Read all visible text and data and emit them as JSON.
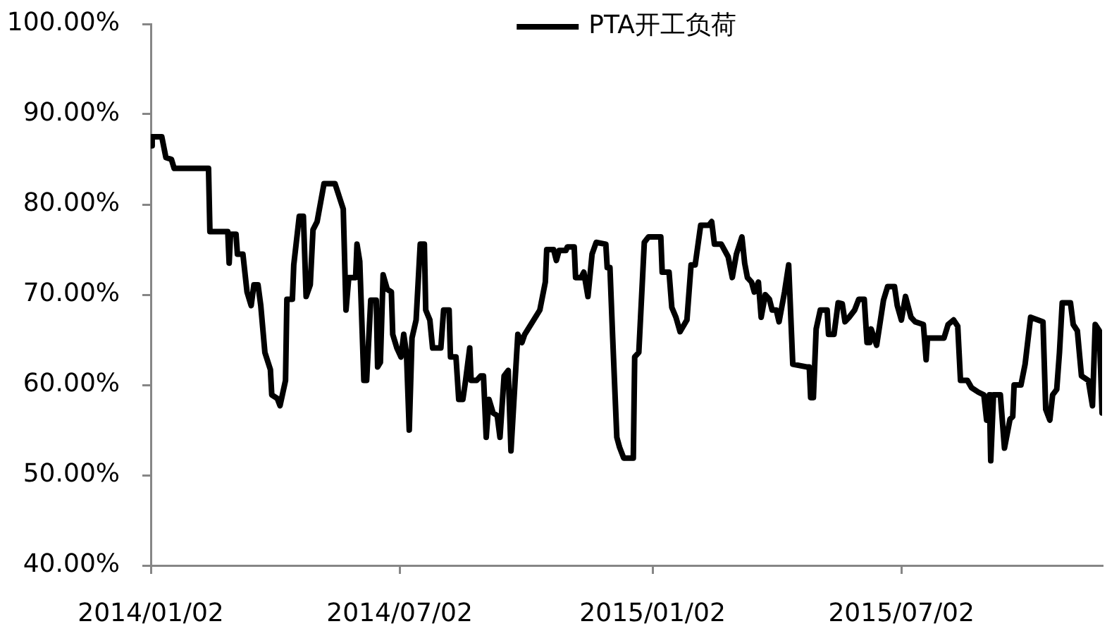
{
  "chart_data": {
    "type": "line",
    "legend": "top",
    "x": [
      "2014-01-02",
      "2014-01-03",
      "2014-01-10",
      "2014-01-13",
      "2014-01-17",
      "2014-01-19",
      "2014-02-13",
      "2014-02-14",
      "2014-02-27",
      "2014-02-28",
      "2014-03-01",
      "2014-03-05",
      "2014-03-06",
      "2014-03-10",
      "2014-03-13",
      "2014-03-16",
      "2014-03-18",
      "2014-03-21",
      "2014-03-23",
      "2014-03-26",
      "2014-03-30",
      "2014-03-31",
      "2014-04-04",
      "2014-04-06",
      "2014-04-10",
      "2014-04-11",
      "2014-04-15",
      "2014-04-16",
      "2014-04-20",
      "2014-04-23",
      "2014-04-25",
      "2014-04-28",
      "2014-04-30",
      "2014-05-03",
      "2014-05-08",
      "2014-05-16",
      "2014-05-22",
      "2014-05-24",
      "2014-05-26",
      "2014-05-31",
      "2014-06-01",
      "2014-06-03",
      "2014-06-06",
      "2014-06-08",
      "2014-06-11",
      "2014-06-15",
      "2014-06-16",
      "2014-06-18",
      "2014-06-20",
      "2014-06-23",
      "2014-06-26",
      "2014-06-27",
      "2014-06-30",
      "2014-07-03",
      "2014-07-05",
      "2014-07-07",
      "2014-07-09",
      "2014-07-11",
      "2014-07-14",
      "2014-07-17",
      "2014-07-20",
      "2014-07-21",
      "2014-07-24",
      "2014-07-26",
      "2014-08-01",
      "2014-08-03",
      "2014-08-07",
      "2014-08-08",
      "2014-08-12",
      "2014-08-14",
      "2014-08-17",
      "2014-08-19",
      "2014-08-22",
      "2014-08-23",
      "2014-08-27",
      "2014-08-30",
      "2014-09-01",
      "2014-09-03",
      "2014-09-05",
      "2014-09-08",
      "2014-09-11",
      "2014-09-13",
      "2014-09-16",
      "2014-09-19",
      "2014-09-21",
      "2014-09-24",
      "2014-09-26",
      "2014-09-29",
      "2014-10-01",
      "2014-10-12",
      "2014-10-16",
      "2014-10-17",
      "2014-10-22",
      "2014-10-24",
      "2014-10-26",
      "2014-10-31",
      "2014-11-01",
      "2014-11-06",
      "2014-11-07",
      "2014-11-11",
      "2014-11-13",
      "2014-11-16",
      "2014-11-19",
      "2014-11-22",
      "2014-11-29",
      "2014-11-30",
      "2014-12-02",
      "2014-12-04",
      "2014-12-07",
      "2014-12-09",
      "2014-12-12",
      "2014-12-19",
      "2014-12-20",
      "2014-12-23",
      "2014-12-27",
      "2014-12-30",
      "2015-01-08",
      "2015-01-09",
      "2015-01-14",
      "2015-01-16",
      "2015-01-19",
      "2015-01-22",
      "2015-01-27",
      "2015-01-30",
      "2015-02-02",
      "2015-02-06",
      "2015-02-12",
      "2015-02-14",
      "2015-02-16",
      "2015-02-21",
      "2015-02-26",
      "2015-03-01",
      "2015-03-04",
      "2015-03-08",
      "2015-03-10",
      "2015-03-12",
      "2015-03-15",
      "2015-03-17",
      "2015-03-20",
      "2015-03-22",
      "2015-03-25",
      "2015-03-28",
      "2015-03-30",
      "2015-04-02",
      "2015-04-04",
      "2015-04-08",
      "2015-04-11",
      "2015-04-14",
      "2015-04-24",
      "2015-04-26",
      "2015-04-27",
      "2015-04-29",
      "2015-05-01",
      "2015-05-04",
      "2015-05-09",
      "2015-05-10",
      "2015-05-14",
      "2015-05-17",
      "2015-05-20",
      "2015-05-22",
      "2015-05-25",
      "2015-05-29",
      "2015-06-01",
      "2015-06-05",
      "2015-06-07",
      "2015-06-09",
      "2015-06-10",
      "2015-06-14",
      "2015-06-19",
      "2015-06-22",
      "2015-06-27",
      "2015-06-29",
      "2015-07-02",
      "2015-07-05",
      "2015-07-09",
      "2015-07-12",
      "2015-07-18",
      "2015-07-20",
      "2015-07-21",
      "2015-08-02",
      "2015-08-05",
      "2015-08-09",
      "2015-08-12",
      "2015-08-14",
      "2015-08-19",
      "2015-08-22",
      "2015-08-27",
      "2015-08-31",
      "2015-09-02",
      "2015-09-04",
      "2015-09-05",
      "2015-09-07",
      "2015-09-12",
      "2015-09-15",
      "2015-09-19",
      "2015-09-21",
      "2015-09-22",
      "2015-09-27",
      "2015-09-30",
      "2015-10-04",
      "2015-10-13",
      "2015-10-15",
      "2015-10-18",
      "2015-10-20",
      "2015-10-23",
      "2015-10-25",
      "2015-10-27",
      "2015-11-02",
      "2015-11-04",
      "2015-11-07",
      "2015-11-10",
      "2015-11-15",
      "2015-11-18",
      "2015-11-20",
      "2015-11-23",
      "2015-11-25"
    ],
    "series": [
      {
        "name": "PTA开工负荷",
        "color": "#000000",
        "values": [
          86.5,
          87.5,
          87.5,
          85.2,
          85.0,
          84.0,
          84.0,
          77.0,
          77.0,
          73.5,
          76.7,
          76.7,
          74.5,
          74.5,
          70.3,
          68.8,
          71.1,
          71.1,
          68.8,
          63.6,
          61.7,
          58.9,
          58.5,
          57.7,
          60.5,
          69.5,
          69.5,
          73.3,
          78.7,
          78.7,
          69.8,
          71.1,
          77.2,
          78.1,
          82.3,
          82.3,
          79.5,
          68.3,
          71.9,
          71.9,
          75.6,
          73.7,
          60.5,
          60.5,
          69.4,
          69.4,
          62.0,
          62.5,
          72.2,
          70.6,
          70.3,
          65.6,
          64.1,
          63.1,
          65.6,
          63.5,
          55.0,
          65.2,
          67.2,
          75.6,
          75.6,
          68.3,
          67.2,
          64.1,
          64.1,
          68.3,
          68.3,
          63.1,
          63.1,
          58.4,
          58.4,
          60.5,
          64.1,
          60.5,
          60.5,
          61.0,
          61.0,
          54.2,
          58.4,
          56.9,
          56.6,
          54.2,
          61.0,
          61.6,
          52.7,
          60.5,
          65.6,
          64.7,
          65.6,
          68.3,
          71.4,
          75.0,
          75.0,
          73.8,
          74.9,
          74.9,
          75.3,
          75.3,
          71.9,
          71.9,
          72.5,
          69.8,
          74.5,
          75.8,
          75.6,
          73.0,
          73.0,
          65.2,
          54.2,
          53.1,
          51.9,
          51.9,
          63.1,
          63.6,
          75.8,
          76.4,
          76.4,
          72.5,
          72.5,
          68.6,
          67.5,
          65.9,
          67.2,
          73.3,
          73.3,
          77.7,
          77.7,
          78.1,
          75.6,
          75.6,
          74.2,
          71.9,
          74.5,
          76.4,
          73.5,
          71.9,
          71.4,
          70.3,
          71.4,
          67.5,
          70.0,
          69.5,
          68.3,
          68.3,
          67.0,
          70.3,
          73.3,
          62.3,
          62.0,
          62.0,
          58.6,
          58.6,
          66.2,
          68.3,
          68.3,
          65.6,
          65.6,
          69.1,
          69.0,
          67.0,
          67.5,
          68.3,
          69.5,
          69.5,
          64.7,
          64.7,
          66.2,
          64.4,
          69.4,
          70.9,
          70.9,
          68.8,
          67.2,
          69.8,
          67.5,
          67.0,
          66.7,
          62.8,
          65.2,
          65.2,
          66.7,
          67.2,
          66.5,
          60.5,
          60.5,
          59.7,
          59.2,
          58.9,
          56.1,
          58.9,
          51.6,
          58.9,
          58.9,
          53.0,
          56.2,
          56.5,
          60.0,
          60.0,
          62.3,
          67.5,
          67.0,
          57.3,
          56.1,
          58.9,
          59.5,
          63.6,
          69.1,
          69.1,
          66.7,
          66.0,
          61.0,
          60.5,
          57.7,
          66.7,
          66.0,
          56.9
        ]
      }
    ],
    "xlim": [
      "2014-01-02",
      "2015-11-25"
    ],
    "xticks": [
      {
        "value": "2014-01-02",
        "label": "2014/01/02"
      },
      {
        "value": "2014-07-02",
        "label": "2014/07/02"
      },
      {
        "value": "2015-01-02",
        "label": "2015/01/02"
      },
      {
        "value": "2015-07-02",
        "label": "2015/07/02"
      }
    ],
    "ylim": [
      40,
      100
    ],
    "yticks": [
      {
        "value": 40,
        "label": "40.00%"
      },
      {
        "value": 50,
        "label": "50.00%"
      },
      {
        "value": 60,
        "label": "60.00%"
      },
      {
        "value": 70,
        "label": "70.00%"
      },
      {
        "value": 80,
        "label": "80.00%"
      },
      {
        "value": 90,
        "label": "90.00%"
      },
      {
        "value": 100,
        "label": "100.00%"
      }
    ]
  }
}
